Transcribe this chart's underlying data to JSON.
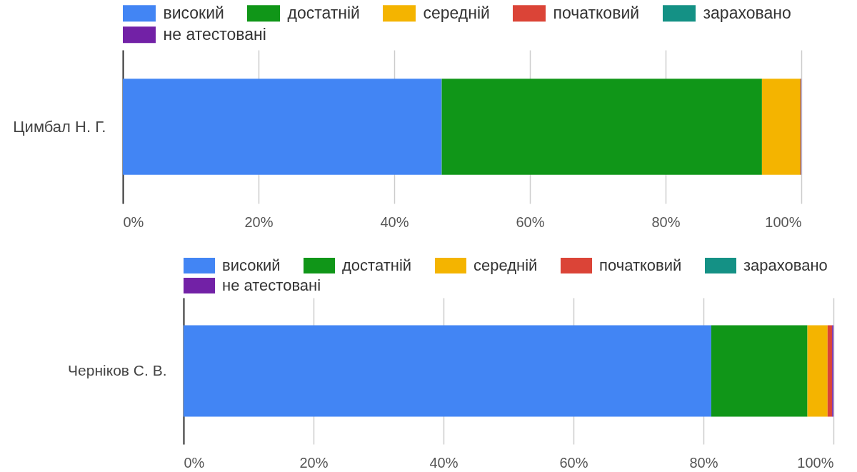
{
  "chart_data": [
    {
      "type": "bar",
      "orientation": "horizontal",
      "stacked": true,
      "categories": [
        "Цимбал Н. Г."
      ],
      "series": [
        {
          "name": "високий",
          "color": "#4285f4",
          "values": [
            47.0
          ]
        },
        {
          "name": "достатній",
          "color": "#109618",
          "values": [
            47.2
          ]
        },
        {
          "name": "середній",
          "color": "#f4b400",
          "values": [
            5.7
          ]
        },
        {
          "name": "початковий",
          "color": "#db4437",
          "values": [
            0
          ]
        },
        {
          "name": "зараховано",
          "color": "#149185",
          "values": [
            0
          ]
        },
        {
          "name": "не атестовані",
          "color": "#7221a6",
          "values": [
            0.1
          ]
        }
      ],
      "xlim": [
        0,
        100
      ],
      "xticks": [
        {
          "value": 0,
          "label": "0%"
        },
        {
          "value": 20,
          "label": "20%"
        },
        {
          "value": 40,
          "label": "40%"
        },
        {
          "value": 60,
          "label": "60%"
        },
        {
          "value": 80,
          "label": "80%"
        },
        {
          "value": 100,
          "label": "100%"
        }
      ],
      "grid": "x",
      "legend": "top"
    },
    {
      "type": "bar",
      "orientation": "horizontal",
      "stacked": true,
      "categories": [
        "Черніков С. В."
      ],
      "series": [
        {
          "name": "високий",
          "color": "#4285f4",
          "values": [
            81.2
          ]
        },
        {
          "name": "достатній",
          "color": "#109618",
          "values": [
            14.8
          ]
        },
        {
          "name": "середній",
          "color": "#f4b400",
          "values": [
            3.1
          ]
        },
        {
          "name": "початковий",
          "color": "#db4437",
          "values": [
            0.7
          ]
        },
        {
          "name": "зараховано",
          "color": "#149185",
          "values": [
            0
          ]
        },
        {
          "name": "не атестовані",
          "color": "#7221a6",
          "values": [
            0.2
          ]
        }
      ],
      "xlim": [
        0,
        100
      ],
      "xticks": [
        {
          "value": 0,
          "label": "0%"
        },
        {
          "value": 20,
          "label": "20%"
        },
        {
          "value": 40,
          "label": "40%"
        },
        {
          "value": 60,
          "label": "60%"
        },
        {
          "value": 80,
          "label": "80%"
        },
        {
          "value": 100,
          "label": "100%"
        }
      ],
      "grid": "x",
      "legend": "top"
    }
  ]
}
